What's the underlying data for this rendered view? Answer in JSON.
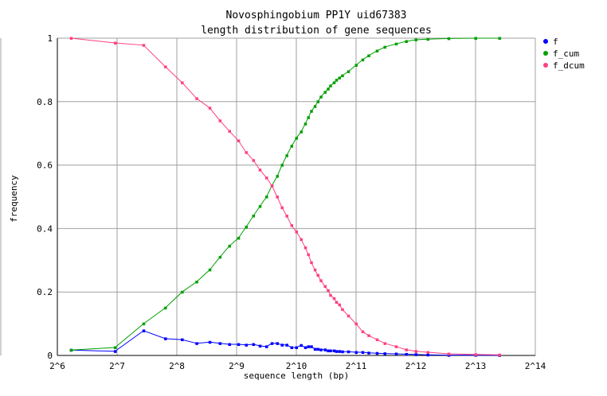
{
  "chart_data": {
    "type": "line",
    "title": "Novosphingobium PP1Y uid67383",
    "subtitle": "length distribution of gene sequences",
    "xlabel": "sequence length (bp)",
    "ylabel": "frequency",
    "x_scale": "log2",
    "xlim": [
      64,
      16384
    ],
    "ylim": [
      0,
      1
    ],
    "x_ticks": [
      "2^6",
      "2^7",
      "2^8",
      "2^9",
      "2^10",
      "2^11",
      "2^12",
      "2^13",
      "2^14"
    ],
    "x_tick_values": [
      64,
      128,
      256,
      512,
      1024,
      2048,
      4096,
      8192,
      16384
    ],
    "y_ticks": [
      "0",
      "0.2",
      "0.4",
      "0.6",
      "0.8",
      "1"
    ],
    "y_tick_values": [
      0,
      0.2,
      0.4,
      0.6,
      0.8,
      1
    ],
    "grid": true,
    "legend_position": "right",
    "x": [
      75,
      125,
      174,
      224,
      272,
      322,
      375,
      422,
      471,
      523,
      572,
      622,
      671,
      724,
      771,
      820,
      867,
      916,
      969,
      1024,
      1082,
      1136,
      1176,
      1218,
      1270,
      1314,
      1361,
      1428,
      1479,
      1520,
      1585,
      1629,
      1687,
      1746,
      1872,
      2048,
      2210,
      2369,
      2610,
      2856,
      3258,
      3665,
      4096,
      4705,
      5994,
      8192,
      10809
    ],
    "series": [
      {
        "name": "f",
        "color": "#0000ff",
        "values": [
          0.017,
          0.013,
          0.078,
          0.053,
          0.05,
          0.038,
          0.042,
          0.038,
          0.035,
          0.035,
          0.033,
          0.035,
          0.03,
          0.028,
          0.038,
          0.038,
          0.033,
          0.033,
          0.025,
          0.025,
          0.032,
          0.025,
          0.028,
          0.028,
          0.02,
          0.02,
          0.018,
          0.018,
          0.015,
          0.015,
          0.015,
          0.013,
          0.013,
          0.012,
          0.012,
          0.01,
          0.01,
          0.008,
          0.007,
          0.006,
          0.005,
          0.004,
          0.003,
          0.002,
          0.001,
          0.001,
          0.0005
        ]
      },
      {
        "name": "f_cum",
        "color": "#00a000",
        "values": [
          0.017,
          0.025,
          0.1,
          0.15,
          0.2,
          0.232,
          0.27,
          0.31,
          0.345,
          0.37,
          0.405,
          0.44,
          0.47,
          0.5,
          0.535,
          0.565,
          0.6,
          0.63,
          0.66,
          0.685,
          0.705,
          0.73,
          0.75,
          0.77,
          0.785,
          0.8,
          0.815,
          0.83,
          0.84,
          0.85,
          0.86,
          0.868,
          0.875,
          0.882,
          0.895,
          0.915,
          0.932,
          0.945,
          0.96,
          0.972,
          0.982,
          0.99,
          0.995,
          0.997,
          0.999,
          1.0,
          1.0
        ]
      },
      {
        "name": "f_dcum",
        "color": "#ff4080",
        "values": [
          1.0,
          0.985,
          0.978,
          0.91,
          0.86,
          0.81,
          0.78,
          0.74,
          0.707,
          0.677,
          0.64,
          0.615,
          0.585,
          0.56,
          0.535,
          0.5,
          0.466,
          0.44,
          0.41,
          0.39,
          0.366,
          0.34,
          0.318,
          0.293,
          0.27,
          0.253,
          0.236,
          0.218,
          0.205,
          0.19,
          0.18,
          0.168,
          0.16,
          0.145,
          0.125,
          0.1,
          0.075,
          0.063,
          0.05,
          0.038,
          0.028,
          0.018,
          0.013,
          0.01,
          0.005,
          0.003,
          0.002
        ]
      }
    ]
  }
}
